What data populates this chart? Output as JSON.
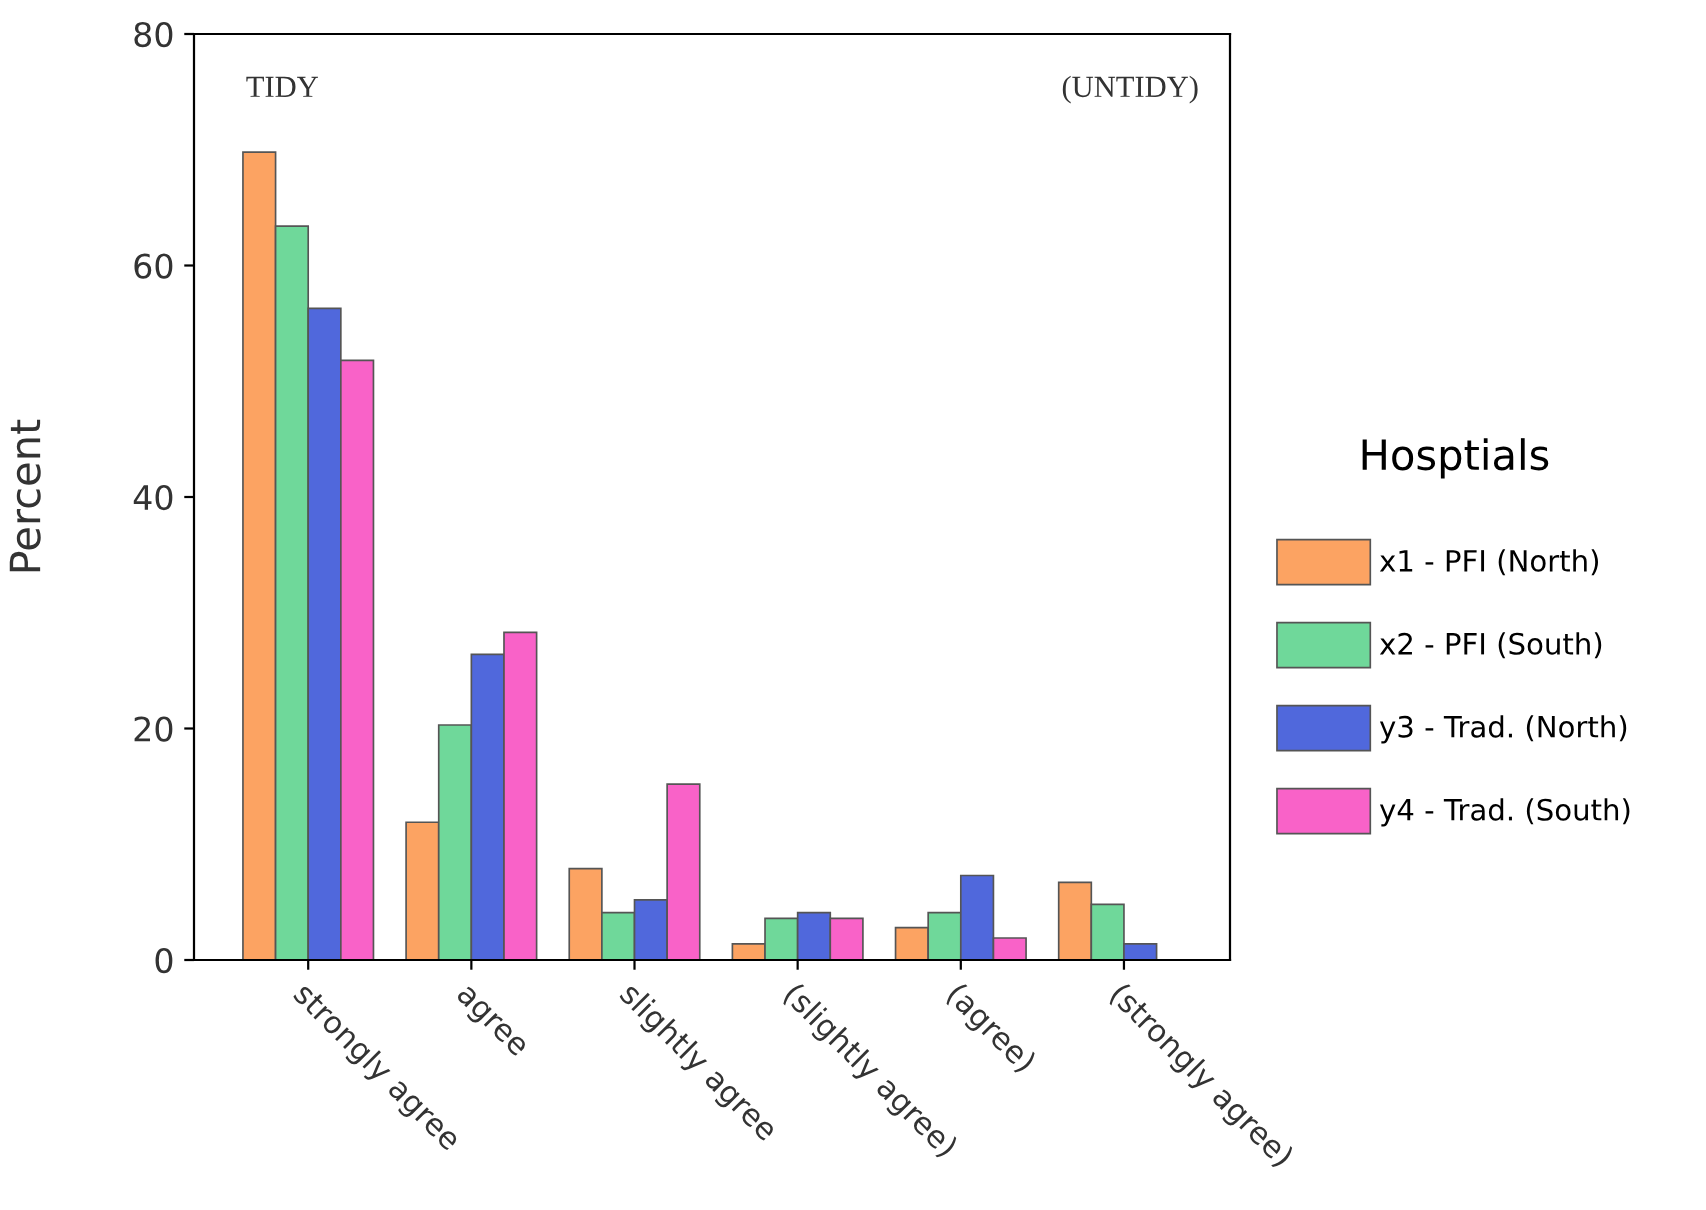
{
  "chart_data": {
    "type": "bar",
    "ylabel": "Percent",
    "legend_title": "Hosptials",
    "categories": [
      "strongly agree",
      "agree",
      "slightly agree",
      "(slightly agree)",
      "(agree)",
      "(strongly agree)"
    ],
    "series": [
      {
        "name": "x1 - PFI (North)",
        "color": "#fca362",
        "values": [
          69.8,
          11.9,
          7.9,
          1.4,
          2.8,
          6.7
        ]
      },
      {
        "name": "x2 - PFI (South)",
        "color": "#6fd89a",
        "values": [
          63.4,
          20.3,
          4.1,
          3.6,
          4.1,
          4.8
        ]
      },
      {
        "name": "y3 - Trad. (North)",
        "color": "#5068dc",
        "values": [
          56.3,
          26.4,
          5.2,
          4.1,
          7.3,
          1.4
        ]
      },
      {
        "name": "y4 - Trad. (South)",
        "color": "#f962c8",
        "values": [
          51.8,
          28.3,
          15.2,
          3.6,
          1.9,
          null
        ]
      }
    ],
    "ylim": [
      0,
      80
    ],
    "yticks": [
      0,
      20,
      40,
      60,
      80
    ],
    "grid": false,
    "legend": "right",
    "annotations": [
      "TIDY",
      "(UNTIDY)"
    ]
  }
}
